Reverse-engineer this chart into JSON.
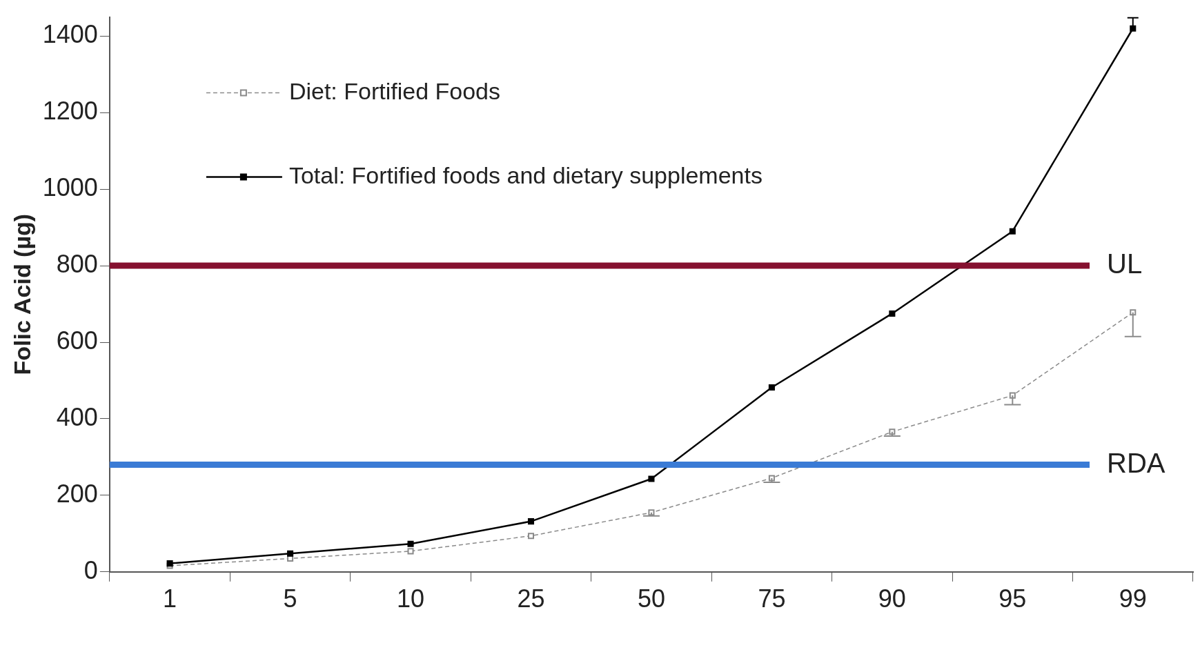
{
  "chart_data": {
    "type": "line",
    "ylabel": "Folic Acid (µg)",
    "categories": [
      "1",
      "5",
      "10",
      "25",
      "50",
      "75",
      "90",
      "95",
      "99"
    ],
    "series": [
      {
        "name": "Diet: Fortified Foods",
        "color": "#8a8a8a",
        "line_style": "dashed",
        "marker": "square",
        "values": [
          16,
          35,
          54,
          94,
          155,
          245,
          366,
          461,
          678
        ],
        "errors": [
          null,
          null,
          null,
          null,
          [
            146,
            155
          ],
          [
            234,
            245
          ],
          [
            355,
            366
          ],
          [
            437,
            461
          ],
          [
            615,
            678
          ]
        ]
      },
      {
        "name": "Total: Fortified foods and dietary supplements",
        "color": "#000000",
        "line_style": "solid",
        "marker": "square",
        "values": [
          22,
          48,
          73,
          132,
          243,
          482,
          675,
          890,
          1420
        ],
        "errors": [
          null,
          null,
          null,
          null,
          null,
          null,
          null,
          null,
          [
            1420,
            1448
          ]
        ]
      }
    ],
    "ylim": [
      0,
      1450
    ],
    "yticks": [
      0,
      200,
      400,
      600,
      800,
      1000,
      1200,
      1400
    ],
    "grid": false,
    "legend": "top left",
    "ref_lines": [
      {
        "axis": "y",
        "value": 800,
        "label": "UL",
        "color": "#85102f"
      },
      {
        "axis": "y",
        "value": 280,
        "label": "RDA",
        "color": "#3a7bd5"
      }
    ]
  }
}
